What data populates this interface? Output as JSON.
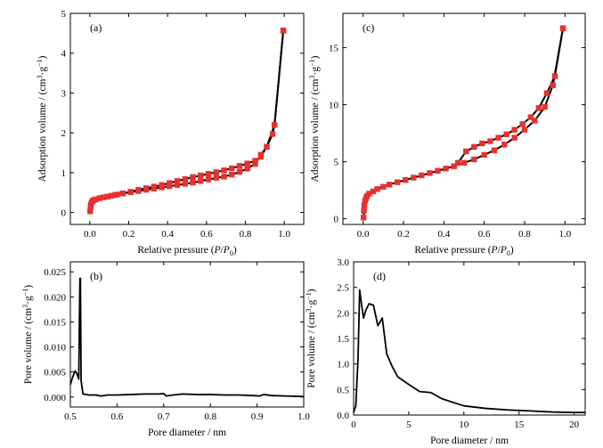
{
  "chart_data": [
    {
      "panel": "(a)",
      "type": "scatter",
      "xlabel": "Relative pressure (P/P0)",
      "ylabel": "Adsorption volume / (cm3·g−1)",
      "xlim": [
        -0.1,
        1.1
      ],
      "ylim": [
        -0.3,
        5
      ],
      "xticks": [
        "0.0",
        "0.2",
        "0.4",
        "0.6",
        "0.8",
        "1.0"
      ],
      "xtick_values": [
        0,
        0.2,
        0.4,
        0.6,
        0.8,
        1.0
      ],
      "yticks": [
        "0",
        "1",
        "2",
        "3",
        "4",
        "5"
      ],
      "ytick_values": [
        0,
        1,
        2,
        3,
        4,
        5
      ],
      "marker_color": "#e8312f",
      "series": [
        {
          "role": "adsorption",
          "x": [
            0.002,
            0.004,
            0.006,
            0.01,
            0.015,
            0.02,
            0.03,
            0.05,
            0.07,
            0.09,
            0.11,
            0.14,
            0.17,
            0.21,
            0.25,
            0.29,
            0.33,
            0.37,
            0.41,
            0.45,
            0.49,
            0.53,
            0.57,
            0.61,
            0.65,
            0.69,
            0.73,
            0.77,
            0.81,
            0.85,
            0.88,
            0.91,
            0.94,
            0.95,
            0.995
          ],
          "y": [
            0.03,
            0.13,
            0.2,
            0.26,
            0.29,
            0.31,
            0.33,
            0.36,
            0.38,
            0.4,
            0.42,
            0.45,
            0.48,
            0.51,
            0.54,
            0.57,
            0.6,
            0.63,
            0.66,
            0.69,
            0.72,
            0.75,
            0.79,
            0.83,
            0.87,
            0.9,
            0.95,
            1.02,
            1.1,
            1.22,
            1.45,
            1.65,
            1.97,
            2.2,
            4.57
          ]
        },
        {
          "role": "desorption",
          "x": [
            0.995,
            0.95,
            0.91,
            0.88,
            0.85,
            0.81,
            0.77,
            0.73,
            0.69,
            0.65,
            0.61,
            0.57,
            0.53,
            0.49,
            0.45,
            0.41,
            0.37,
            0.33,
            0.29,
            0.25,
            0.21,
            0.17,
            0.13,
            0.09
          ],
          "y": [
            4.57,
            2.2,
            1.65,
            1.4,
            1.3,
            1.23,
            1.17,
            1.11,
            1.06,
            1.01,
            0.97,
            0.93,
            0.89,
            0.84,
            0.79,
            0.74,
            0.69,
            0.65,
            0.61,
            0.57,
            0.52,
            0.48,
            0.44,
            0.4
          ]
        }
      ]
    },
    {
      "panel": "(c)",
      "type": "scatter",
      "xlabel": "Relative pressure (P/P0)",
      "ylabel": "Adsorption volume / (cm3·g−1)",
      "xlim": [
        -0.1,
        1.1
      ],
      "ylim": [
        -0.5,
        18
      ],
      "xticks": [
        "0.0",
        "0.2",
        "0.4",
        "0.6",
        "0.8",
        "1.0"
      ],
      "xtick_values": [
        0,
        0.2,
        0.4,
        0.6,
        0.8,
        1.0
      ],
      "yticks": [
        "0",
        "5",
        "10",
        "15"
      ],
      "ytick_values": [
        0,
        5,
        10,
        15
      ],
      "marker_color": "#e8312f",
      "series": [
        {
          "role": "adsorption",
          "x": [
            0.002,
            0.004,
            0.006,
            0.01,
            0.015,
            0.02,
            0.03,
            0.05,
            0.07,
            0.1,
            0.13,
            0.17,
            0.21,
            0.25,
            0.29,
            0.33,
            0.37,
            0.41,
            0.45,
            0.5,
            0.55,
            0.6,
            0.65,
            0.7,
            0.75,
            0.8,
            0.85,
            0.9,
            0.94,
            0.99
          ],
          "y": [
            0.1,
            0.7,
            1.2,
            1.6,
            1.8,
            2.0,
            2.2,
            2.4,
            2.6,
            2.8,
            3.0,
            3.2,
            3.4,
            3.6,
            3.8,
            4.0,
            4.2,
            4.4,
            4.6,
            4.9,
            5.2,
            5.6,
            6.0,
            6.5,
            7.1,
            7.8,
            8.6,
            9.8,
            11.7,
            16.7
          ]
        },
        {
          "role": "desorption",
          "x": [
            0.99,
            0.95,
            0.91,
            0.87,
            0.83,
            0.79,
            0.75,
            0.71,
            0.67,
            0.63,
            0.59,
            0.55,
            0.51,
            0.47
          ],
          "y": [
            16.7,
            12.5,
            11.0,
            9.7,
            8.9,
            8.3,
            7.8,
            7.4,
            7.1,
            6.8,
            6.6,
            6.3,
            5.9,
            4.9
          ]
        }
      ]
    },
    {
      "panel": "(b)",
      "type": "line",
      "xlabel": "Pore diameter / nm",
      "ylabel": "Pore volume / (cm3·g−1)",
      "xlim": [
        0.5,
        1.0
      ],
      "ylim": [
        -0.002,
        0.027
      ],
      "xticks": [
        "0.5",
        "0.6",
        "0.7",
        "0.8",
        "0.9",
        "1.0"
      ],
      "xtick_values": [
        0.5,
        0.6,
        0.7,
        0.8,
        0.9,
        1.0
      ],
      "yticks": [
        "0.000",
        "0.005",
        "0.010",
        "0.015",
        "0.020",
        "0.025"
      ],
      "ytick_values": [
        0,
        0.005,
        0.01,
        0.015,
        0.02,
        0.025
      ],
      "line_color": "#000000",
      "x": [
        0.5,
        0.505,
        0.51,
        0.514,
        0.518,
        0.5205,
        0.5215,
        0.523,
        0.527,
        0.54,
        0.555,
        0.565,
        0.58,
        0.6,
        0.63,
        0.66,
        0.69,
        0.7,
        0.705,
        0.72,
        0.74,
        0.77,
        0.8,
        0.83,
        0.86,
        0.89,
        0.905,
        0.915,
        0.93,
        0.96,
        1.0
      ],
      "y": [
        0.0025,
        0.004,
        0.0052,
        0.0047,
        0.0036,
        0.0237,
        0.0237,
        0.0033,
        0.0006,
        0.0004,
        0.0004,
        0.0002,
        0.0004,
        0.0004,
        0.0005,
        0.0006,
        0.0006,
        0.0007,
        0.0002,
        0.0004,
        0.0006,
        0.0005,
        0.0005,
        0.0004,
        0.0004,
        0.0003,
        0.0002,
        0.0005,
        0.0003,
        0.0002,
        0.0001
      ]
    },
    {
      "panel": "(d)",
      "type": "line",
      "xlabel": "Pore diameter / nm",
      "ylabel": "Pore volume / (cm3·g−1)",
      "xlim": [
        0,
        21
      ],
      "ylim": [
        0,
        3.0
      ],
      "xticks": [
        "0",
        "5",
        "10",
        "15",
        "20"
      ],
      "xtick_values": [
        0,
        5,
        10,
        15,
        20
      ],
      "yticks": [
        "0.0",
        "0.5",
        "1.0",
        "1.5",
        "2.0",
        "2.5",
        "3.0"
      ],
      "ytick_values": [
        0,
        0.5,
        1.0,
        1.5,
        2.0,
        2.5,
        3.0
      ],
      "line_color": "#000000",
      "x": [
        0,
        0.2,
        0.4,
        0.55,
        0.7,
        0.9,
        1.1,
        1.4,
        1.8,
        2.2,
        2.6,
        3.0,
        3.5,
        4.0,
        5.0,
        6.0,
        7.0,
        8.0,
        9.0,
        10.0,
        12.0,
        14.0,
        16.0,
        18.0,
        20.0,
        21.0
      ],
      "y": [
        0.05,
        0.18,
        1.1,
        2.45,
        2.2,
        1.9,
        2.05,
        2.18,
        2.15,
        1.75,
        1.9,
        1.2,
        0.95,
        0.75,
        0.6,
        0.46,
        0.44,
        0.32,
        0.25,
        0.18,
        0.13,
        0.1,
        0.08,
        0.06,
        0.05,
        0.05
      ]
    }
  ]
}
